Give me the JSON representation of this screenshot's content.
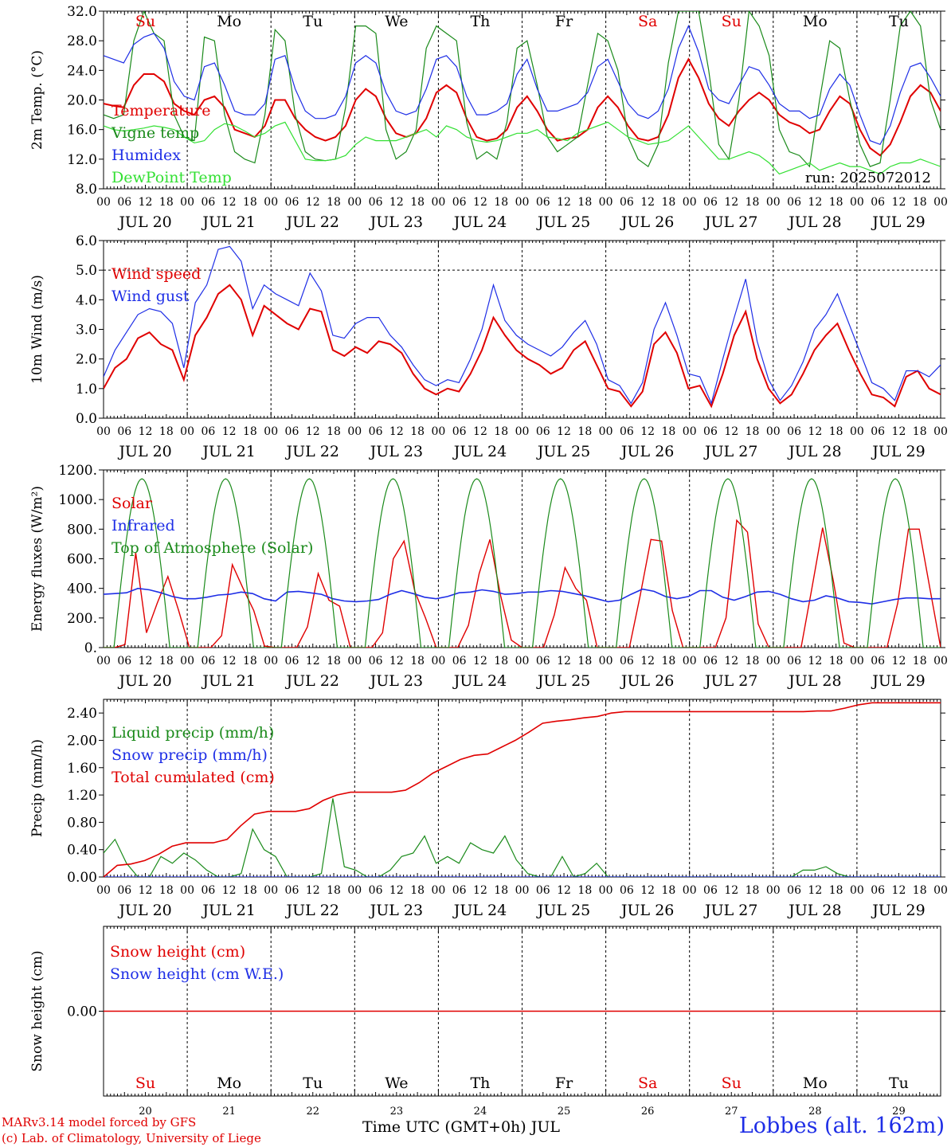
{
  "colors": {
    "red": "#e00000",
    "dark_green": "#1a8a1a",
    "blue": "#1e2ee6",
    "light_green": "#33e033",
    "black": "#000000"
  },
  "days": [
    {
      "dow": "Su",
      "date": "JUL 20",
      "num": "20",
      "weekend": true
    },
    {
      "dow": "Mo",
      "date": "JUL 21",
      "num": "21",
      "weekend": false
    },
    {
      "dow": "Tu",
      "date": "JUL 22",
      "num": "22",
      "weekend": false
    },
    {
      "dow": "We",
      "date": "JUL 23",
      "num": "23",
      "weekend": false
    },
    {
      "dow": "Th",
      "date": "JUL 24",
      "num": "24",
      "weekend": false
    },
    {
      "dow": "Fr",
      "date": "JUL 25",
      "num": "25",
      "weekend": false
    },
    {
      "dow": "Sa",
      "date": "JUL 26",
      "num": "26",
      "weekend": true
    },
    {
      "dow": "Su",
      "date": "JUL 27",
      "num": "27",
      "weekend": true
    },
    {
      "dow": "Mo",
      "date": "JUL 28",
      "num": "28",
      "weekend": false
    },
    {
      "dow": "Tu",
      "date": "JUL 29",
      "num": "29",
      "weekend": false
    }
  ],
  "hour_labels": [
    "00",
    "06",
    "12",
    "18"
  ],
  "end_hour_label": "00",
  "x_title": "Time UTC (GMT+0h) JUL",
  "station": "Lobbes (alt. 162m)",
  "credits": [
    "MARv3.14 model forced by GFS",
    "(c) Lab. of Climatology, University of Liege"
  ],
  "chart_data": [
    {
      "type": "line",
      "ylabel": "2m Temp. (°C)",
      "ylim": [
        8,
        32
      ],
      "yticks": [
        "8.0",
        "12.0",
        "16.0",
        "20.0",
        "24.0",
        "28.0",
        "32.0"
      ],
      "yvalues": [
        8,
        12,
        16,
        20,
        24,
        28,
        32
      ],
      "annotation": "run: 2025072012",
      "series": [
        {
          "name": "Temperature",
          "color": "red",
          "width": 2,
          "values": [
            19.5,
            19.2,
            19.0,
            22.0,
            23.5,
            23.5,
            22.5,
            19.5,
            18.5,
            18.0,
            20.0,
            20.5,
            19.0,
            16.0,
            15.5,
            15.0,
            16.5,
            20.0,
            20.0,
            17.5,
            16.0,
            15.0,
            14.5,
            15.0,
            16.5,
            20.0,
            21.5,
            20.5,
            17.5,
            15.5,
            15.0,
            15.5,
            17.5,
            21.0,
            22.0,
            21.0,
            17.5,
            15.0,
            14.5,
            14.8,
            16.0,
            19.0,
            20.5,
            18.5,
            16.0,
            14.5,
            14.8,
            15.0,
            16.0,
            19.0,
            20.5,
            19.0,
            16.5,
            14.8,
            14.5,
            15.0,
            18.0,
            23.0,
            25.5,
            23.0,
            19.5,
            17.5,
            16.5,
            18.5,
            20.0,
            21.0,
            20.0,
            18.0,
            17.0,
            16.5,
            15.5,
            16.0,
            18.5,
            20.5,
            19.5,
            16.0,
            13.5,
            12.5,
            14.0,
            17.0,
            20.5,
            22.0,
            21.0,
            18.5
          ]
        },
        {
          "name": "Vigne temp",
          "color": "dark_green",
          "width": 1.2,
          "values": [
            18.0,
            17.5,
            18.0,
            28.0,
            32.0,
            29.0,
            28.0,
            18.0,
            15.0,
            14.5,
            28.5,
            28.0,
            18.0,
            13.0,
            12.0,
            11.5,
            18.0,
            29.5,
            28.0,
            18.0,
            13.0,
            12.0,
            11.8,
            12.0,
            19.0,
            30.0,
            30.0,
            29.0,
            16.0,
            12.0,
            13.0,
            16.0,
            27.0,
            30.0,
            29.0,
            28.0,
            17.0,
            12.0,
            13.0,
            12.0,
            17.0,
            27.0,
            28.0,
            22.0,
            15.0,
            13.0,
            14.0,
            15.0,
            22.0,
            29.0,
            28.0,
            24.0,
            15.0,
            12.0,
            11.0,
            14.0,
            25.0,
            32.0,
            32.0,
            32.0,
            24.0,
            14.0,
            12.0,
            20.0,
            32.0,
            30.0,
            26.0,
            16.0,
            13.0,
            12.5,
            11.0,
            20.0,
            28.0,
            27.0,
            20.0,
            14.0,
            11.0,
            11.5,
            20.0,
            30.0,
            32.0,
            30.0,
            20.0,
            16.0
          ]
        },
        {
          "name": "Humidex",
          "color": "blue",
          "width": 1.2,
          "values": [
            26.0,
            25.5,
            25.0,
            27.5,
            28.5,
            29.0,
            27.0,
            22.5,
            20.5,
            20.0,
            24.5,
            25.0,
            22.0,
            18.5,
            18.0,
            18.0,
            19.5,
            25.5,
            26.0,
            21.5,
            18.5,
            17.5,
            17.5,
            18.0,
            20.5,
            25.0,
            26.0,
            25.0,
            21.0,
            18.5,
            18.0,
            18.5,
            21.5,
            25.5,
            26.0,
            24.5,
            20.5,
            18.0,
            18.0,
            18.5,
            19.5,
            23.5,
            25.5,
            21.5,
            18.5,
            18.5,
            19.0,
            19.5,
            21.0,
            24.5,
            25.5,
            22.5,
            19.5,
            18.0,
            17.5,
            18.5,
            21.5,
            27.0,
            30.0,
            26.5,
            21.5,
            20.0,
            19.5,
            22.0,
            24.5,
            24.0,
            22.0,
            19.5,
            18.5,
            18.5,
            17.5,
            18.0,
            21.5,
            23.5,
            22.0,
            18.0,
            14.5,
            14.0,
            16.5,
            21.0,
            24.5,
            25.0,
            23.0,
            20.5
          ]
        },
        {
          "name": "DewPoint Temp",
          "color": "light_green",
          "width": 1.2,
          "values": [
            16.5,
            16.0,
            15.8,
            16.0,
            16.2,
            16.5,
            16.3,
            16.0,
            15.0,
            14.2,
            14.5,
            16.0,
            16.8,
            16.5,
            15.8,
            15.0,
            15.5,
            16.5,
            17.0,
            14.5,
            12.0,
            11.8,
            11.8,
            12.0,
            12.5,
            14.0,
            15.0,
            14.5,
            14.5,
            14.5,
            15.0,
            15.5,
            16.0,
            15.0,
            16.5,
            16.0,
            15.0,
            14.5,
            14.3,
            14.5,
            15.0,
            15.5,
            15.5,
            16.0,
            15.0,
            14.8,
            14.5,
            15.5,
            16.0,
            16.5,
            17.0,
            16.0,
            15.0,
            14.5,
            14.0,
            14.2,
            14.5,
            15.5,
            16.5,
            15.0,
            13.5,
            12.0,
            12.0,
            12.5,
            13.0,
            12.5,
            11.5,
            10.0,
            10.5,
            11.0,
            11.5,
            10.5,
            11.0,
            11.5,
            11.0,
            11.0,
            10.5,
            10.0,
            11.0,
            11.5,
            11.5,
            12.0,
            11.5,
            11.0
          ]
        }
      ]
    },
    {
      "type": "line",
      "ylabel": "10m Wind (m/s)",
      "ylim": [
        0,
        6
      ],
      "yticks": [
        "0.0",
        "1.0",
        "2.0",
        "3.0",
        "4.0",
        "5.0",
        "6.0"
      ],
      "yvalues": [
        0,
        1,
        2,
        3,
        4,
        5,
        6
      ],
      "reference_line": 5,
      "series": [
        {
          "name": "Wind speed",
          "color": "red",
          "width": 2,
          "values": [
            1.0,
            1.7,
            2.0,
            2.7,
            2.9,
            2.5,
            2.3,
            1.3,
            2.8,
            3.4,
            4.2,
            4.5,
            4.0,
            2.8,
            3.8,
            3.5,
            3.2,
            3.0,
            3.7,
            3.6,
            2.3,
            2.1,
            2.4,
            2.2,
            2.6,
            2.5,
            2.2,
            1.5,
            1.0,
            0.8,
            1.0,
            0.9,
            1.5,
            2.3,
            3.4,
            2.8,
            2.3,
            2.0,
            1.8,
            1.5,
            1.7,
            2.3,
            2.6,
            1.8,
            1.0,
            0.9,
            0.4,
            0.9,
            2.5,
            2.9,
            2.2,
            1.0,
            1.1,
            0.4,
            1.5,
            2.8,
            3.6,
            2.0,
            1.0,
            0.5,
            0.8,
            1.5,
            2.3,
            2.8,
            3.2,
            2.3,
            1.5,
            0.8,
            0.7,
            0.4,
            1.4,
            1.6,
            1.0,
            0.8
          ]
        },
        {
          "name": "Wind gust",
          "color": "blue",
          "width": 1.2,
          "values": [
            1.4,
            2.3,
            2.9,
            3.5,
            3.7,
            3.6,
            3.2,
            1.7,
            3.9,
            4.5,
            5.7,
            5.8,
            5.3,
            3.7,
            4.5,
            4.2,
            4.0,
            3.8,
            4.9,
            4.3,
            2.8,
            2.7,
            3.2,
            3.4,
            3.4,
            2.8,
            2.4,
            1.8,
            1.3,
            1.1,
            1.3,
            1.2,
            2.0,
            3.0,
            4.5,
            3.3,
            2.8,
            2.5,
            2.3,
            2.1,
            2.4,
            2.9,
            3.3,
            2.5,
            1.3,
            1.1,
            0.5,
            1.2,
            3.0,
            3.9,
            2.8,
            1.5,
            1.4,
            0.5,
            2.0,
            3.4,
            4.7,
            2.6,
            1.3,
            0.6,
            1.1,
            1.9,
            3.0,
            3.5,
            4.2,
            3.2,
            2.2,
            1.2,
            1.0,
            0.6,
            1.6,
            1.6,
            1.4,
            1.8
          ]
        }
      ]
    },
    {
      "type": "line",
      "ylabel": "Energy fluxes (W/m²)",
      "ylim": [
        0,
        1200
      ],
      "yticks": [
        "0.",
        "200.",
        "400.",
        "600.",
        "800.",
        "1000.",
        "1200."
      ],
      "yvalues": [
        0,
        200,
        400,
        600,
        800,
        1000,
        1200
      ],
      "series": [
        {
          "name": "Solar",
          "color": "red",
          "width": 1.4,
          "values": [
            0,
            0,
            20,
            640,
            100,
            300,
            480,
            250,
            0,
            0,
            0,
            80,
            560,
            400,
            250,
            10,
            0,
            0,
            0,
            140,
            500,
            320,
            280,
            0,
            0,
            0,
            100,
            600,
            720,
            380,
            200,
            0,
            0,
            0,
            150,
            500,
            730,
            350,
            50,
            0,
            0,
            0,
            220,
            540,
            400,
            320,
            0,
            0,
            0,
            0,
            350,
            730,
            720,
            250,
            0,
            0,
            0,
            0,
            200,
            860,
            780,
            160,
            0,
            0,
            0,
            0,
            400,
            810,
            450,
            30,
            0,
            0,
            0,
            0,
            300,
            800,
            800,
            400,
            0
          ]
        },
        {
          "name": "Infrared",
          "color": "blue",
          "width": 1.6,
          "values": [
            360,
            365,
            370,
            400,
            390,
            370,
            345,
            330,
            330,
            340,
            355,
            360,
            375,
            365,
            330,
            315,
            375,
            380,
            370,
            360,
            330,
            315,
            310,
            315,
            325,
            360,
            385,
            365,
            340,
            330,
            345,
            370,
            375,
            390,
            380,
            360,
            365,
            375,
            375,
            385,
            380,
            365,
            350,
            330,
            310,
            320,
            360,
            395,
            380,
            345,
            330,
            345,
            385,
            385,
            340,
            320,
            345,
            375,
            380,
            360,
            330,
            310,
            320,
            350,
            335,
            310,
            305,
            295,
            310,
            325,
            335,
            335,
            330,
            330
          ]
        },
        {
          "name": "Top of Atmosphere (Solar)",
          "color": "dark_green",
          "width": 1.2,
          "values": []
        }
      ],
      "toa_peak": 1140
    },
    {
      "type": "line",
      "ylabel": "Precip (mm/h)",
      "ylim": [
        0,
        2.6
      ],
      "yticks": [
        "0.00",
        "0.40",
        "0.80",
        "1.20",
        "1.60",
        "2.00",
        "2.40"
      ],
      "yvalues": [
        0,
        0.4,
        0.8,
        1.2,
        1.6,
        2.0,
        2.4
      ],
      "series": [
        {
          "name": "Liquid precip (mm/h)",
          "color": "dark_green",
          "width": 1.2,
          "values": [
            0.35,
            0.55,
            0.2,
            0.0,
            0.0,
            0.3,
            0.2,
            0.35,
            0.25,
            0.1,
            0.0,
            0.0,
            0.05,
            0.7,
            0.4,
            0.3,
            0.0,
            0.0,
            0.0,
            0.05,
            1.15,
            0.15,
            0.1,
            0.0,
            0.0,
            0.1,
            0.3,
            0.35,
            0.6,
            0.2,
            0.3,
            0.2,
            0.5,
            0.4,
            0.35,
            0.6,
            0.25,
            0.05,
            0.0,
            0.0,
            0.3,
            0.0,
            0.05,
            0.2,
            0.0,
            0.0,
            0.0,
            0.0,
            0.0,
            0.0,
            0.0,
            0.0,
            0.0,
            0.0,
            0.0,
            0.0,
            0.0,
            0.0,
            0.0,
            0.0,
            0.0,
            0.1,
            0.1,
            0.15,
            0.05,
            0.0,
            0.0,
            0.0,
            0.0,
            0.0,
            0.0,
            0.0,
            0.0,
            0.0
          ]
        },
        {
          "name": "Snow precip (mm/h)",
          "color": "blue",
          "width": 1.2,
          "values": [
            0,
            0
          ]
        },
        {
          "name": "Total cumulated (cm)",
          "color": "red",
          "width": 1.6,
          "values": [
            0.0,
            0.17,
            0.19,
            0.24,
            0.33,
            0.45,
            0.5,
            0.5,
            0.5,
            0.55,
            0.75,
            0.92,
            0.96,
            0.96,
            0.96,
            1.0,
            1.12,
            1.2,
            1.24,
            1.24,
            1.24,
            1.24,
            1.27,
            1.38,
            1.52,
            1.62,
            1.72,
            1.78,
            1.8,
            1.9,
            2.0,
            2.12,
            2.25,
            2.28,
            2.3,
            2.33,
            2.35,
            2.4,
            2.42,
            2.42,
            2.42,
            2.42,
            2.42,
            2.42,
            2.42,
            2.42,
            2.42,
            2.42,
            2.42,
            2.42,
            2.42,
            2.42,
            2.43,
            2.43,
            2.47,
            2.52,
            2.55,
            2.55,
            2.55,
            2.55,
            2.55,
            2.55
          ]
        }
      ]
    },
    {
      "type": "line",
      "ylabel": "Snow height (cm)",
      "ylim": [
        -1,
        1
      ],
      "yticks": [
        "0.00"
      ],
      "yvalues": [
        0
      ],
      "series": [
        {
          "name": "Snow height (cm)",
          "color": "red",
          "width": 1.4,
          "values": [
            0,
            0
          ]
        },
        {
          "name": "Snow height (cm W.E.)",
          "color": "blue",
          "width": 1.2,
          "values": []
        }
      ]
    }
  ]
}
